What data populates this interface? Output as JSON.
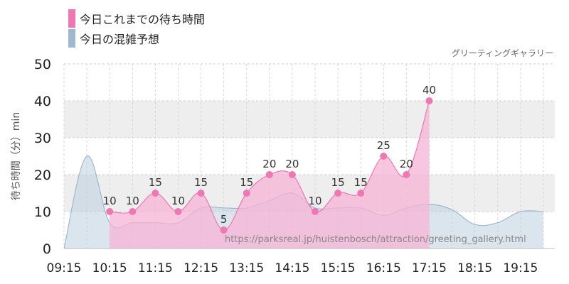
{
  "legend": {
    "wait_label": "今日これまでの待ち時間",
    "crowd_label": "今日の混雑予想"
  },
  "subtitle": "グリーティングギャラリー",
  "watermark": "https://parksreal.jp/huistenbosch/attraction/greeting_gallery.html",
  "colors": {
    "wait_fill": "#f7b3d6",
    "wait_line": "#ee77b4",
    "wait_point": "#ee77b4",
    "crowd_fill": "#bccfe0",
    "crowd_line": "#9fb8d0",
    "band": "#eeeeee"
  },
  "chart_data": {
    "type": "area",
    "title": "",
    "subtitle": "グリーティングギャラリー",
    "xlabel": "",
    "ylabel": "待ち時間（分）min",
    "ylim": [
      0,
      50
    ],
    "yticks": [
      0,
      10,
      20,
      30,
      40,
      50
    ],
    "xlim": [
      "09:15",
      "20:00"
    ],
    "xticks": [
      "09:15",
      "10:15",
      "11:15",
      "12:15",
      "13:15",
      "14:15",
      "15:15",
      "16:15",
      "17:15",
      "18:15",
      "19:15"
    ],
    "bands": [
      [
        10,
        20
      ],
      [
        30,
        40
      ]
    ],
    "grid": true,
    "legend_position": "top-left",
    "series": [
      {
        "name": "今日これまでの待ち時間",
        "type": "area",
        "points": [
          {
            "t": "10:15",
            "v": 10
          },
          {
            "t": "10:45",
            "v": 10
          },
          {
            "t": "11:15",
            "v": 15
          },
          {
            "t": "11:45",
            "v": 10
          },
          {
            "t": "12:15",
            "v": 15
          },
          {
            "t": "12:45",
            "v": 5
          },
          {
            "t": "13:15",
            "v": 15
          },
          {
            "t": "13:45",
            "v": 20
          },
          {
            "t": "14:15",
            "v": 20
          },
          {
            "t": "14:45",
            "v": 10
          },
          {
            "t": "15:15",
            "v": 15
          },
          {
            "t": "15:45",
            "v": 15
          },
          {
            "t": "16:15",
            "v": 25
          },
          {
            "t": "16:45",
            "v": 20
          },
          {
            "t": "17:15",
            "v": 40
          }
        ]
      },
      {
        "name": "今日の混雑予想",
        "type": "area",
        "points": [
          {
            "t": "09:15",
            "v": 0
          },
          {
            "t": "09:45",
            "v": 25
          },
          {
            "t": "10:15",
            "v": 7
          },
          {
            "t": "10:45",
            "v": 7
          },
          {
            "t": "11:15",
            "v": 7
          },
          {
            "t": "11:45",
            "v": 7
          },
          {
            "t": "12:15",
            "v": 11
          },
          {
            "t": "12:45",
            "v": 11
          },
          {
            "t": "13:15",
            "v": 11
          },
          {
            "t": "13:45",
            "v": 13
          },
          {
            "t": "14:15",
            "v": 15
          },
          {
            "t": "14:45",
            "v": 11
          },
          {
            "t": "15:15",
            "v": 11
          },
          {
            "t": "15:45",
            "v": 11
          },
          {
            "t": "16:15",
            "v": 9
          },
          {
            "t": "16:45",
            "v": 11
          },
          {
            "t": "17:15",
            "v": 12
          },
          {
            "t": "17:45",
            "v": 10.5
          },
          {
            "t": "18:15",
            "v": 6.5
          },
          {
            "t": "18:45",
            "v": 7
          },
          {
            "t": "19:15",
            "v": 10
          },
          {
            "t": "19:45",
            "v": 10
          }
        ]
      }
    ]
  }
}
